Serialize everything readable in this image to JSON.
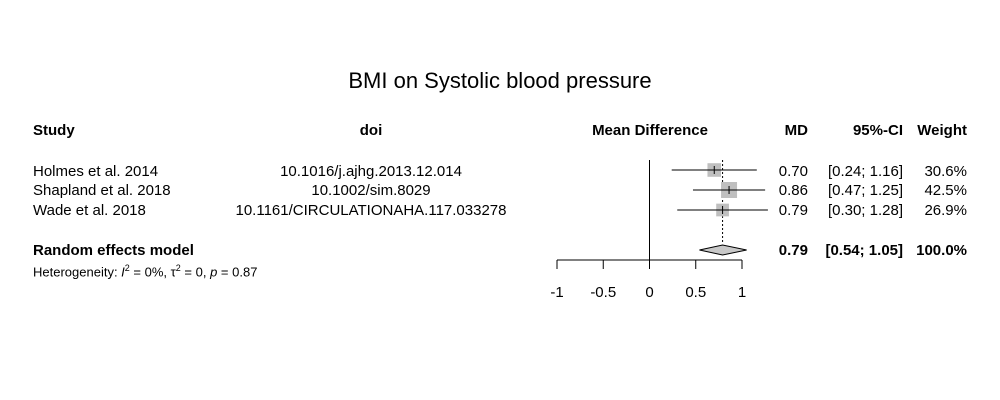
{
  "title": "BMI on Systolic blood pressure",
  "headers": {
    "study": "Study",
    "doi": "doi",
    "effect": "Mean Difference",
    "md": "MD",
    "ci": "95%-CI",
    "weight": "Weight"
  },
  "studies": [
    {
      "study": "Holmes et al. 2014",
      "doi": "10.1016/j.ajhg.2013.12.014",
      "md": "0.70",
      "ci": "[0.24; 1.16]",
      "weight": "30.6%"
    },
    {
      "study": "Shapland et al. 2018",
      "doi": "10.1002/sim.8029",
      "md": "0.86",
      "ci": "[0.47; 1.25]",
      "weight": "42.5%"
    },
    {
      "study": "Wade et al. 2018",
      "doi": "10.1161/CIRCULATIONAHA.117.033278",
      "md": "0.79",
      "ci": "[0.30; 1.28]",
      "weight": "26.9%"
    }
  ],
  "summary": {
    "label": "Random effects model",
    "md": "0.79",
    "ci": "[0.54; 1.05]",
    "weight": "100.0%"
  },
  "heterogeneity": {
    "prefix": "Heterogeneity: ",
    "i2_symbol": "I",
    "i2_value": " = 0%, ",
    "tau2_symbol": "τ",
    "tau2_value": " = 0, ",
    "p_symbol": "p",
    "p_value": " = 0.87"
  },
  "chart_data": {
    "type": "forest",
    "xlim": [
      -1,
      1
    ],
    "xticks": [
      -1,
      -0.5,
      0,
      0.5,
      1
    ],
    "xtick_labels": [
      "-1",
      "-0.5",
      "0",
      "0.5",
      "1"
    ],
    "null_line": 0,
    "summary_line": 0.79,
    "studies": [
      {
        "estimate": 0.7,
        "lower": 0.24,
        "upper": 1.16,
        "weight": 30.6
      },
      {
        "estimate": 0.86,
        "lower": 0.47,
        "upper": 1.25,
        "weight": 42.5
      },
      {
        "estimate": 0.79,
        "lower": 0.3,
        "upper": 1.28,
        "weight": 26.9
      }
    ],
    "summary": {
      "estimate": 0.79,
      "lower": 0.54,
      "upper": 1.05
    },
    "colors": {
      "square": "#bfbfbf",
      "diamond": "#c8c8c8",
      "line": "#000000"
    }
  }
}
